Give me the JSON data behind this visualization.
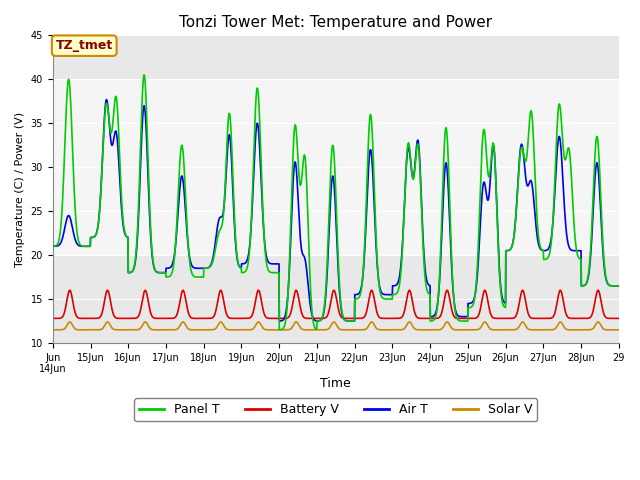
{
  "title": "Tonzi Tower Met: Temperature and Power",
  "xlabel": "Time",
  "ylabel": "Temperature (C) / Power (V)",
  "ylim": [
    10,
    45
  ],
  "yticks": [
    10,
    15,
    20,
    25,
    30,
    35,
    40,
    45
  ],
  "annotation": "TZ_tmet",
  "fig_bg": "#ffffff",
  "plot_bg_main": "#e8e8e8",
  "plot_bg_band": "#f5f5f5",
  "series": {
    "panel_t": {
      "label": "Panel T",
      "color": "#00cc00",
      "lw": 1.2
    },
    "battery_v": {
      "label": "Battery V",
      "color": "#dd0000",
      "lw": 1.2
    },
    "air_t": {
      "label": "Air T",
      "color": "#0000ee",
      "lw": 1.2
    },
    "solar_v": {
      "label": "Solar V",
      "color": "#cc8800",
      "lw": 1.2
    }
  },
  "n_days": 15,
  "pts_per_day": 144,
  "panel_peaks": [
    40.0,
    37.0,
    40.5,
    32.5,
    22.5,
    39.0,
    34.5,
    32.5,
    36.0,
    32.5,
    34.5,
    34.0,
    32.0,
    37.0,
    33.5
  ],
  "panel_peaks2": [
    0,
    37.5,
    0,
    0,
    36.0,
    0,
    30.5,
    0,
    0,
    32.0,
    0,
    32.0,
    36.0,
    31.5,
    16.5
  ],
  "air_peaks": [
    24.5,
    37.5,
    37.0,
    29.0,
    24.0,
    35.0,
    30.5,
    29.0,
    32.0,
    32.0,
    30.5,
    28.0,
    32.5,
    33.5,
    30.5
  ],
  "air_peaks2": [
    0,
    33.5,
    0,
    0,
    33.5,
    0,
    19.0,
    0,
    0,
    32.5,
    0,
    32.0,
    28.0,
    20.5,
    0
  ],
  "trough_vals": [
    21.0,
    22.0,
    18.0,
    17.5,
    18.5,
    18.0,
    11.5,
    12.5,
    15.0,
    15.5,
    12.5,
    14.0,
    20.5,
    19.5,
    16.5
  ],
  "air_trough": [
    21.0,
    22.0,
    18.0,
    18.5,
    18.5,
    19.0,
    12.5,
    12.5,
    15.5,
    16.5,
    13.0,
    14.5,
    20.5,
    20.5,
    16.5
  ],
  "battery_base": 12.8,
  "battery_peak": 16.0,
  "solar_base": 11.5,
  "solar_peak": 12.4
}
